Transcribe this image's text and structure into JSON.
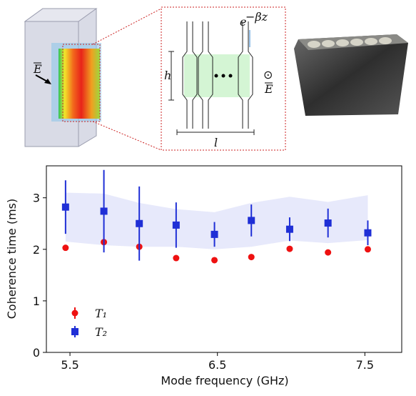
{
  "schematic": {
    "height_label": "h",
    "length_label": "l",
    "decay_base": "e",
    "decay_exponent": "−βz",
    "field_left": "E",
    "field_right": "E",
    "out_of_plane": "⊙"
  },
  "chart_data": {
    "type": "scatter",
    "xlabel": "Mode frequency (GHz)",
    "ylabel": "Coherence time (ms)",
    "x": [
      5.47,
      5.73,
      5.97,
      6.22,
      6.48,
      6.73,
      6.99,
      7.25,
      7.52
    ],
    "series": [
      {
        "name": "T₁",
        "color": "#ee1111",
        "marker": "circle",
        "values": [
          2.03,
          2.14,
          2.05,
          1.83,
          1.79,
          1.85,
          2.01,
          1.94,
          2.0
        ]
      },
      {
        "name": "T₂",
        "color": "#1f2fd6",
        "marker": "square",
        "values": [
          2.82,
          2.74,
          2.5,
          2.47,
          2.29,
          2.56,
          2.39,
          2.51,
          2.32
        ],
        "errors": [
          0.52,
          0.8,
          0.72,
          0.44,
          0.24,
          0.31,
          0.23,
          0.28,
          0.24
        ]
      }
    ],
    "band": {
      "color": "#e7e9fb",
      "upper": [
        3.1,
        3.08,
        2.9,
        2.78,
        2.72,
        2.9,
        3.02,
        2.92,
        3.05
      ],
      "lower": [
        2.15,
        2.08,
        2.05,
        2.05,
        2.0,
        2.05,
        2.17,
        2.12,
        2.18
      ]
    },
    "xlim": [
      5.34,
      7.75
    ],
    "ylim": [
      0,
      3.62
    ],
    "xticks": [
      5.5,
      6.5,
      7.5
    ],
    "yticks": [
      0,
      1,
      2,
      3
    ],
    "legend": "lower left"
  }
}
